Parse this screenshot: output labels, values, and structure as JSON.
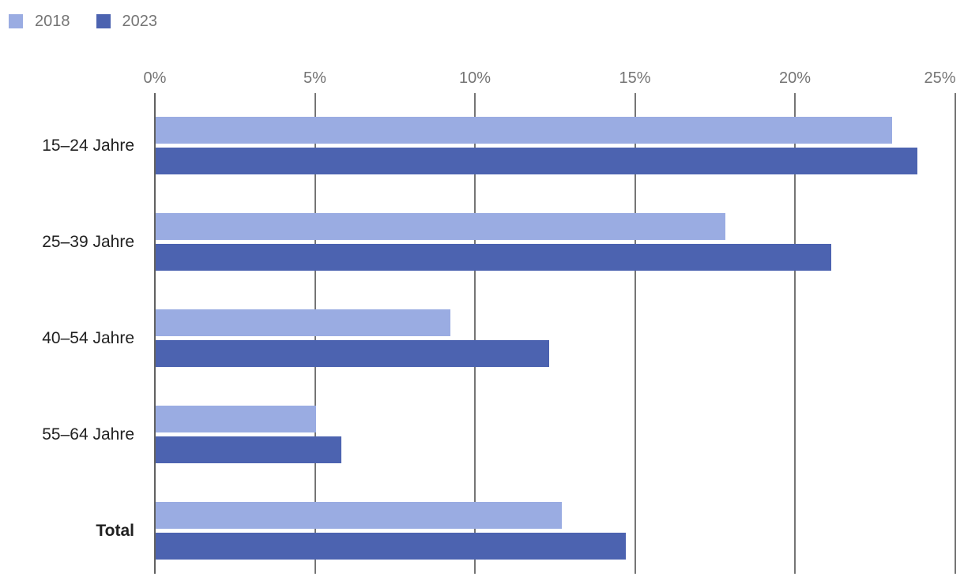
{
  "chart_data": {
    "type": "bar",
    "orientation": "horizontal",
    "title": "",
    "xlabel": "",
    "ylabel": "",
    "categories": [
      "15–24 Jahre",
      "25–39 Jahre",
      "40–54 Jahre",
      "55–64 Jahre",
      "Total"
    ],
    "bold_categories": [
      "Total"
    ],
    "series": [
      {
        "name": "2018",
        "color": "#9AACE2",
        "values": [
          23.0,
          17.8,
          9.2,
          5.0,
          12.7
        ]
      },
      {
        "name": "2023",
        "color": "#4C63B0",
        "values": [
          23.8,
          21.1,
          12.3,
          5.8,
          14.7
        ]
      }
    ],
    "xlim": [
      0,
      25
    ],
    "x_ticks": [
      "0%",
      "5%",
      "10%",
      "15%",
      "20%",
      "25%"
    ],
    "grid": true,
    "legend_position": "top-left"
  },
  "colors": {
    "bar_2018": "#9AACE2",
    "bar_2023": "#4C63B0",
    "tick_label": "#757575",
    "legend_label": "#757575",
    "category_label": "#212121",
    "gridline": "#757575",
    "baseline": "#616161",
    "background": "#ffffff"
  }
}
